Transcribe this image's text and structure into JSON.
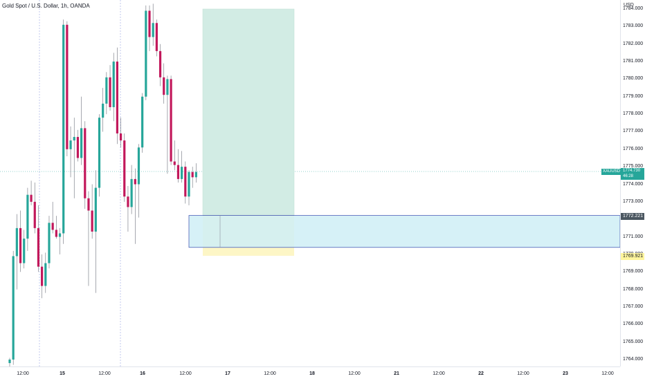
{
  "header": {
    "title": "Gold Spot / U.S. Dollar, 1h, OANDA",
    "currency": "USD"
  },
  "symbol_tag": "XAUUSD",
  "live_price": {
    "price": "1774.730",
    "countdown": "46:28"
  },
  "marker_prices": {
    "entry": "1772.221",
    "stop": "1769.921"
  },
  "price_axis": {
    "labels": [
      "1784.000",
      "1783.000",
      "1782.000",
      "1781.000",
      "1780.000",
      "1779.000",
      "1778.000",
      "1777.000",
      "1776.000",
      "1775.000",
      "1774.000",
      "1773.000",
      "1771.000",
      "1770.000",
      "1769.000",
      "1768.000",
      "1767.000",
      "1766.000",
      "1765.000",
      "1764.000"
    ]
  },
  "time_axis": {
    "labels": [
      {
        "text": "12:00",
        "bold": false
      },
      {
        "text": "15",
        "bold": true
      },
      {
        "text": "12:00",
        "bold": false
      },
      {
        "text": "16",
        "bold": true
      },
      {
        "text": "12:00",
        "bold": false
      },
      {
        "text": "17",
        "bold": true
      },
      {
        "text": "12:00",
        "bold": false
      },
      {
        "text": "18",
        "bold": true
      },
      {
        "text": "12:00",
        "bold": false
      },
      {
        "text": "21",
        "bold": true
      },
      {
        "text": "12:00",
        "bold": false
      },
      {
        "text": "22",
        "bold": true
      },
      {
        "text": "12:00",
        "bold": false
      },
      {
        "text": "23",
        "bold": true
      },
      {
        "text": "12:00",
        "bold": false
      }
    ]
  },
  "colors": {
    "up": "#26a69a",
    "down": "#c2185b",
    "wick": "#6b6f7a",
    "profit_zone": "#d2ece4",
    "loss_zone": "#fdf6c6",
    "blue_zone": "#cfeff6",
    "blue_border": "#4a5fb8"
  },
  "chart_data": {
    "type": "candlestick",
    "symbol": "XAUUSD",
    "timeframe": "1h",
    "ylim": [
      1763.5,
      1784.5
    ],
    "candles": [
      {
        "o": 1763.8,
        "h": 1764.1,
        "l": 1763.5,
        "c": 1764.0
      },
      {
        "o": 1764.0,
        "h": 1770.2,
        "l": 1763.7,
        "c": 1769.9
      },
      {
        "o": 1769.9,
        "h": 1772.3,
        "l": 1768.0,
        "c": 1771.5
      },
      {
        "o": 1771.5,
        "h": 1772.5,
        "l": 1769.0,
        "c": 1769.5
      },
      {
        "o": 1769.5,
        "h": 1771.4,
        "l": 1769.2,
        "c": 1770.9
      },
      {
        "o": 1770.9,
        "h": 1773.8,
        "l": 1770.2,
        "c": 1773.4
      },
      {
        "o": 1773.4,
        "h": 1774.2,
        "l": 1772.8,
        "c": 1773.0
      },
      {
        "o": 1773.0,
        "h": 1774.1,
        "l": 1771.2,
        "c": 1771.5
      },
      {
        "o": 1771.5,
        "h": 1772.8,
        "l": 1769.0,
        "c": 1769.3
      },
      {
        "o": 1769.3,
        "h": 1770.0,
        "l": 1767.5,
        "c": 1768.2
      },
      {
        "o": 1768.2,
        "h": 1770.1,
        "l": 1767.8,
        "c": 1769.5
      },
      {
        "o": 1769.5,
        "h": 1772.2,
        "l": 1769.2,
        "c": 1771.8
      },
      {
        "o": 1771.8,
        "h": 1773.0,
        "l": 1771.2,
        "c": 1771.4
      },
      {
        "o": 1771.4,
        "h": 1772.2,
        "l": 1770.9,
        "c": 1771.0
      },
      {
        "o": 1771.0,
        "h": 1771.5,
        "l": 1770.0,
        "c": 1771.2
      },
      {
        "o": 1771.2,
        "h": 1783.4,
        "l": 1770.6,
        "c": 1783.1
      },
      {
        "o": 1783.1,
        "h": 1783.3,
        "l": 1775.6,
        "c": 1776.0
      },
      {
        "o": 1776.0,
        "h": 1777.3,
        "l": 1774.4,
        "c": 1776.5
      },
      {
        "o": 1776.5,
        "h": 1777.8,
        "l": 1773.2,
        "c": 1776.7
      },
      {
        "o": 1776.7,
        "h": 1777.1,
        "l": 1775.3,
        "c": 1775.5
      },
      {
        "o": 1775.5,
        "h": 1779.0,
        "l": 1775.1,
        "c": 1777.2
      },
      {
        "o": 1777.2,
        "h": 1777.6,
        "l": 1772.6,
        "c": 1773.2
      },
      {
        "o": 1773.2,
        "h": 1773.6,
        "l": 1768.2,
        "c": 1772.5
      },
      {
        "o": 1772.5,
        "h": 1774.0,
        "l": 1770.9,
        "c": 1771.3
      },
      {
        "o": 1771.3,
        "h": 1774.8,
        "l": 1767.8,
        "c": 1773.8
      },
      {
        "o": 1773.8,
        "h": 1778.0,
        "l": 1773.3,
        "c": 1777.8
      },
      {
        "o": 1777.8,
        "h": 1779.5,
        "l": 1777.0,
        "c": 1778.6
      },
      {
        "o": 1778.6,
        "h": 1780.4,
        "l": 1778.0,
        "c": 1780.1
      },
      {
        "o": 1780.1,
        "h": 1780.8,
        "l": 1778.2,
        "c": 1778.4
      },
      {
        "o": 1778.4,
        "h": 1781.5,
        "l": 1777.6,
        "c": 1781.0
      },
      {
        "o": 1781.0,
        "h": 1781.8,
        "l": 1776.3,
        "c": 1776.9
      },
      {
        "o": 1776.9,
        "h": 1777.8,
        "l": 1776.1,
        "c": 1776.5
      },
      {
        "o": 1776.5,
        "h": 1776.9,
        "l": 1773.0,
        "c": 1773.3
      },
      {
        "o": 1773.3,
        "h": 1773.9,
        "l": 1771.3,
        "c": 1772.7
      },
      {
        "o": 1772.7,
        "h": 1775.1,
        "l": 1772.3,
        "c": 1774.3
      },
      {
        "o": 1774.3,
        "h": 1774.9,
        "l": 1770.6,
        "c": 1774.0
      },
      {
        "o": 1774.0,
        "h": 1776.3,
        "l": 1772.1,
        "c": 1776.1
      },
      {
        "o": 1776.1,
        "h": 1779.2,
        "l": 1775.8,
        "c": 1779.0
      },
      {
        "o": 1779.0,
        "h": 1784.2,
        "l": 1778.8,
        "c": 1783.9
      },
      {
        "o": 1783.9,
        "h": 1784.2,
        "l": 1781.6,
        "c": 1782.4
      },
      {
        "o": 1782.4,
        "h": 1784.3,
        "l": 1781.9,
        "c": 1783.2
      },
      {
        "o": 1783.2,
        "h": 1783.4,
        "l": 1781.3,
        "c": 1781.6
      },
      {
        "o": 1781.6,
        "h": 1782.0,
        "l": 1779.6,
        "c": 1780.1
      },
      {
        "o": 1780.1,
        "h": 1780.9,
        "l": 1778.6,
        "c": 1779.1
      },
      {
        "o": 1779.1,
        "h": 1780.2,
        "l": 1774.6,
        "c": 1780.0
      },
      {
        "o": 1780.0,
        "h": 1780.2,
        "l": 1775.1,
        "c": 1775.3
      },
      {
        "o": 1775.3,
        "h": 1776.5,
        "l": 1774.8,
        "c": 1775.1
      },
      {
        "o": 1775.1,
        "h": 1776.0,
        "l": 1774.1,
        "c": 1774.3
      },
      {
        "o": 1774.3,
        "h": 1775.9,
        "l": 1774.1,
        "c": 1775.0
      },
      {
        "o": 1775.0,
        "h": 1775.3,
        "l": 1772.9,
        "c": 1773.3
      },
      {
        "o": 1773.3,
        "h": 1774.8,
        "l": 1772.8,
        "c": 1774.7
      },
      {
        "o": 1774.7,
        "h": 1775.0,
        "l": 1773.8,
        "c": 1774.4
      },
      {
        "o": 1774.4,
        "h": 1775.2,
        "l": 1774.1,
        "c": 1774.7
      }
    ],
    "last_price": 1774.73,
    "long_position": {
      "entry": 1772.221,
      "stop": 1769.921,
      "target": 1784.0
    },
    "zone": {
      "top": 1772.221,
      "bottom": 1770.4
    }
  }
}
